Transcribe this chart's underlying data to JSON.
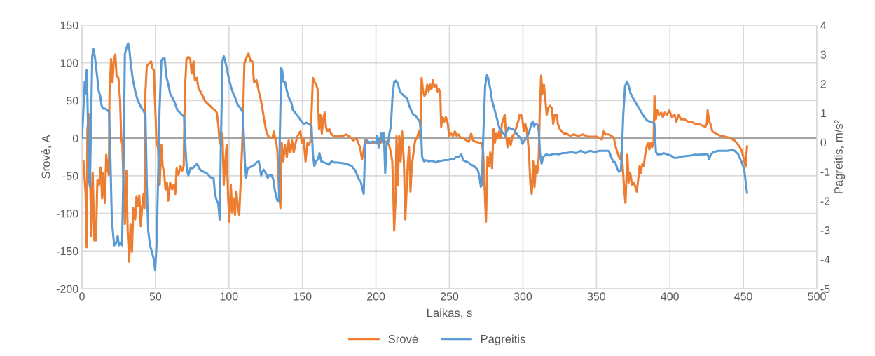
{
  "chart_data": {
    "type": "line",
    "xlabel": "Laikas, s",
    "ylabel": "Srovė, A",
    "y2label": "Pagreitis, m/s²",
    "xlim": [
      0,
      500
    ],
    "xticks": [
      0,
      50,
      100,
      150,
      200,
      250,
      300,
      350,
      400,
      450,
      500
    ],
    "ylim": [
      -200,
      150
    ],
    "yticks": [
      -200,
      -150,
      -100,
      -50,
      0,
      50,
      100,
      150
    ],
    "y2lim": [
      -5,
      4
    ],
    "y2ticks": [
      -5,
      -4,
      -3,
      -2,
      -1,
      0,
      1,
      2,
      3,
      4
    ],
    "grid": true,
    "legend": "bottom",
    "marker": "none",
    "line_style": "solid",
    "series": [
      {
        "name": "Srovė",
        "color": "#ed7d31",
        "axis": "y",
        "x": [
          1,
          2.5,
          3.2,
          3.7,
          4.8,
          6.3,
          7.3,
          8.4,
          9.5,
          10.5,
          11.6,
          12.7,
          13.7,
          14.4,
          15.6,
          16.5,
          17.6,
          18.3,
          18.7,
          19.8,
          20.8,
          21.6,
          22.7,
          23.5,
          24.8,
          25.9,
          26.7,
          27.5,
          28.3,
          29.2,
          30.2,
          31.1,
          32.1,
          33,
          34,
          34.9,
          36.2,
          37.1,
          38.1,
          39,
          40,
          41,
          41.9,
          42.5,
          43.2,
          44.1,
          45.7,
          47,
          47.9,
          48.9,
          49.8,
          50.8,
          51.7,
          52.9,
          54,
          54.9,
          55.9,
          56.8,
          57.8,
          58.7,
          60,
          61.3,
          62.4,
          63.5,
          64.4,
          65.7,
          67,
          68.3,
          69.2,
          70,
          71.1,
          72.4,
          73.7,
          74.6,
          75.9,
          76.8,
          78.1,
          79.4,
          80.6,
          82.2,
          83.8,
          85.4,
          87,
          88.6,
          90.5,
          91.7,
          92.7,
          93.7,
          94.6,
          95.6,
          96.5,
          97.5,
          98.4,
          99.4,
          100.3,
          101.3,
          102.2,
          103.2,
          104.1,
          105.1,
          106,
          107,
          107.9,
          109.2,
          110.5,
          111.6,
          113.2,
          114.8,
          115.9,
          117.1,
          118.7,
          120,
          121.6,
          122.7,
          123.9,
          125.4,
          126.7,
          128.3,
          129.5,
          130.6,
          131.4,
          132.2,
          133,
          133.9,
          135,
          135.9,
          137,
          138.1,
          139.4,
          140.6,
          141.9,
          142.9,
          144.1,
          145.4,
          146.7,
          147.6,
          148.6,
          149.5,
          150.8,
          152.1,
          153.4,
          154.4,
          155.6,
          156.2,
          157.1,
          158.4,
          159.4,
          160.3,
          161.3,
          162.2,
          163.2,
          164.1,
          165.1,
          166,
          167,
          168.3,
          169.5,
          171.1,
          172.7,
          175.1,
          177.5,
          179.8,
          182.2,
          184.6,
          186.7,
          187.9,
          189.2,
          190.5,
          191.4,
          192.7,
          194.3,
          196.5,
          198.9,
          201.3,
          203.2,
          204.4,
          205.7,
          207.6,
          208.9,
          210.2,
          211.1,
          211.7,
          212.4,
          213.3,
          214,
          214.9,
          215.9,
          216.8,
          217.8,
          219,
          220,
          221.6,
          222.5,
          223.5,
          224.4,
          225.4,
          226.7,
          227.9,
          229.2,
          230.2,
          231.1,
          232.1,
          233,
          234,
          234.9,
          235.9,
          236.8,
          237.8,
          238.7,
          239.7,
          241,
          241.9,
          242.9,
          243.8,
          244.4,
          245.4,
          246.5,
          247.6,
          248.9,
          249.8,
          251.1,
          252.4,
          253.7,
          254.9,
          256.2,
          257.8,
          259.4,
          261.6,
          263.2,
          264.8,
          266,
          267.9,
          270.3,
          272.1,
          273,
          274,
          274.9,
          275.9,
          276.8,
          277.8,
          279,
          280,
          281,
          281.9,
          282.9,
          283.8,
          284.8,
          285.7,
          286.7,
          287.6,
          288.6,
          289.5,
          290.5,
          291.7,
          293,
          294.3,
          295.6,
          296.8,
          297.8,
          298.7,
          299.7,
          300.6,
          301.6,
          302.5,
          303.2,
          304.1,
          305.1,
          306,
          307,
          307.9,
          308.9,
          309.8,
          310.8,
          311.4,
          312.4,
          313.3,
          314.3,
          315.2,
          316.2,
          317.1,
          318.4,
          319.7,
          320.6,
          321.6,
          322.9,
          323.8,
          325.1,
          326.3,
          327.9,
          329.8,
          332.2,
          334.6,
          337.8,
          340.9,
          344.1,
          347.3,
          350.4,
          353.7,
          354.9,
          356.2,
          358.4,
          360.3,
          361.9,
          363.2,
          364.8,
          366,
          367,
          367.9,
          368.9,
          369.8,
          371.1,
          372,
          373,
          374.3,
          375.6,
          376.5,
          377.5,
          378.4,
          379.4,
          380.3,
          381.3,
          382.2,
          383.2,
          384.1,
          385.1,
          386,
          387,
          387.9,
          388.9,
          389.5,
          390.5,
          391.4,
          392.7,
          394,
          395.2,
          396.5,
          398.1,
          399.7,
          401.3,
          403.2,
          404.4,
          406,
          407.6,
          410,
          412.4,
          414.8,
          417.1,
          419.5,
          421.9,
          424.1,
          425.1,
          425.7,
          426.7,
          427.6,
          428.9,
          431.4,
          434.6,
          437.8,
          441,
          444,
          446.5,
          448.6,
          450,
          451.5,
          452.5
        ],
        "values": [
          -31,
          -74,
          -145,
          12,
          32,
          -130,
          -46,
          -136,
          -136,
          -56,
          -62,
          -39,
          -80,
          -46,
          -86,
          -22,
          -43,
          -49,
          56,
          105,
          74,
          102,
          111,
          83,
          80,
          52,
          0,
          -9,
          -62,
          -114,
          -43,
          -123,
          -164,
          -114,
          -151,
          -93,
          -108,
          -77,
          -90,
          -76,
          -117,
          -90,
          -74,
          -93,
          62,
          96,
          99,
          102,
          93,
          90,
          43,
          -9,
          -12,
          -62,
          -9,
          -37,
          -46,
          -68,
          -59,
          -83,
          -59,
          -68,
          -62,
          -74,
          -40,
          -49,
          -37,
          -43,
          -37,
          62,
          105,
          108,
          105,
          86,
          102,
          77,
          80,
          65,
          62,
          56,
          49,
          46,
          43,
          40,
          37,
          34,
          19,
          -6,
          -9,
          6,
          -62,
          -31,
          -9,
          -77,
          -111,
          -62,
          -99,
          -80,
          -102,
          -71,
          -90,
          -102,
          -62,
          0,
          99,
          105,
          113,
          102,
          102,
          74,
          77,
          65,
          52,
          40,
          25,
          9,
          3,
          0,
          0,
          9,
          0,
          -6,
          -19,
          -62,
          -93,
          -6,
          -31,
          -9,
          -25,
          -3,
          -19,
          -3,
          -19,
          -6,
          3,
          6,
          9,
          -6,
          0,
          -31,
          -6,
          -9,
          -3,
          34,
          80,
          74,
          71,
          65,
          12,
          31,
          6,
          25,
          34,
          15,
          9,
          12,
          6,
          3,
          2,
          3,
          3,
          5,
          2,
          -3,
          0,
          -6,
          -12,
          -28,
          -19,
          -3,
          -6,
          -6,
          -6,
          -6,
          -6,
          0,
          -3,
          -6,
          -9,
          -19,
          -31,
          -62,
          -123,
          -83,
          3,
          -62,
          3,
          -31,
          9,
          -31,
          -108,
          -37,
          -12,
          -71,
          -37,
          -22,
          -3,
          0,
          9,
          0,
          80,
          62,
          56,
          59,
          71,
          62,
          71,
          65,
          77,
          68,
          71,
          62,
          65,
          59,
          15,
          28,
          22,
          28,
          19,
          3,
          6,
          3,
          9,
          3,
          5,
          0,
          0,
          -3,
          -5,
          6,
          -3,
          -5,
          -6,
          -6,
          -19,
          -68,
          -111,
          -25,
          -37,
          -19,
          -40,
          12,
          -6,
          6,
          0,
          9,
          0,
          19,
          25,
          31,
          3,
          -12,
          0,
          -9,
          3,
          6,
          15,
          22,
          31,
          31,
          25,
          9,
          19,
          12,
          0,
          -19,
          -62,
          -74,
          -31,
          -65,
          -37,
          -46,
          -25,
          31,
          83,
          59,
          71,
          52,
          31,
          40,
          43,
          40,
          19,
          31,
          31,
          19,
          12,
          9,
          6,
          6,
          3,
          5,
          3,
          5,
          2,
          2,
          2,
          -2,
          9,
          5,
          5,
          3,
          0,
          -12,
          -22,
          -28,
          -19,
          -37,
          -68,
          -86,
          -22,
          -59,
          -46,
          -62,
          -59,
          -65,
          -71,
          -56,
          -37,
          -46,
          -34,
          -37,
          -22,
          -12,
          -6,
          -15,
          -6,
          -12,
          -6,
          56,
          25,
          37,
          31,
          34,
          28,
          34,
          31,
          37,
          28,
          31,
          22,
          31,
          25,
          25,
          22,
          22,
          19,
          19,
          17,
          15,
          19,
          37,
          22,
          19,
          9,
          6,
          3,
          2,
          0,
          -3,
          -9,
          -15,
          -25,
          -38,
          -11
        ]
      },
      {
        "name": "Pagreitis",
        "color": "#5b9bd5",
        "axis": "y2",
        "x": [
          0,
          1,
          1.9,
          2.5,
          3.2,
          3.8,
          4.8,
          5.4,
          6.3,
          7,
          7.9,
          8.9,
          10.2,
          11.4,
          12.4,
          13.3,
          14.3,
          15.9,
          17.1,
          18.4,
          19.4,
          20.3,
          21.9,
          23.2,
          24.3,
          25.1,
          26.3,
          27.3,
          28.3,
          29.2,
          30.5,
          31.4,
          32.4,
          33.3,
          34.6,
          36.2,
          37.5,
          38.7,
          40.3,
          41.9,
          43.2,
          44.1,
          45.1,
          46.3,
          47.6,
          48.9,
          49.8,
          50.8,
          51.7,
          52.7,
          54,
          55.2,
          56.2,
          57.5,
          58.7,
          60,
          61.6,
          63.2,
          64.8,
          66.3,
          67.9,
          69.5,
          70.5,
          71.4,
          72.4,
          73.7,
          75.2,
          76.8,
          78.4,
          79.7,
          81.3,
          82.9,
          84.8,
          86.3,
          87.9,
          89.5,
          90.5,
          91.7,
          92.7,
          93.7,
          94.6,
          95.6,
          96.5,
          98.1,
          99.7,
          101.3,
          102.9,
          104.4,
          106,
          107.6,
          109.5,
          110.8,
          111.7,
          112.7,
          114.3,
          115.9,
          117.4,
          118.7,
          120.3,
          121.9,
          123.5,
          125,
          126.3,
          127.6,
          129.2,
          130.2,
          131.1,
          132.1,
          133,
          134,
          134.6,
          135.6,
          136.2,
          137.1,
          138.1,
          139.4,
          140.9,
          142.5,
          143.5,
          145.4,
          147.3,
          148.9,
          150.8,
          152.7,
          154.3,
          156.2,
          157.1,
          158.1,
          159.4,
          160.6,
          161.6,
          162.8,
          164.8,
          166.7,
          167.9,
          169.8,
          171.7,
          174.3,
          176.8,
          179.1,
          181.6,
          183.5,
          184.8,
          186,
          187.3,
          188.6,
          189.8,
          190.8,
          191.7,
          192.7,
          193.7,
          195.6,
          198.1,
          200,
          200.9,
          201.9,
          202.9,
          203.8,
          204.8,
          205.4,
          206.3,
          207.3,
          208.3,
          209.2,
          210.2,
          211.2,
          212.4,
          213.7,
          215,
          216.2,
          218.1,
          220,
          221.3,
          222.5,
          223.8,
          225.4,
          227,
          228.6,
          229.8,
          230.8,
          231.4,
          232.7,
          234.3,
          235.9,
          237.5,
          239.4,
          240.6,
          242.5,
          244.4,
          246.7,
          248.9,
          251.1,
          253,
          254.9,
          256.5,
          258.1,
          259.4,
          260.9,
          262.9,
          264.8,
          266.7,
          268.3,
          269.5,
          270.5,
          271.4,
          272.1,
          273,
          274.3,
          275.6,
          276.5,
          277.8,
          279,
          280.3,
          281.6,
          282.9,
          284.1,
          285.4,
          286.7,
          287.9,
          289.2,
          290.2,
          291.7,
          293.3,
          294.9,
          296.8,
          298.4,
          299.7,
          301.3,
          302.9,
          304.5,
          305.7,
          306.7,
          307.6,
          308.9,
          310.2,
          310.8,
          311.7,
          312.7,
          314,
          315.9,
          317.8,
          319.7,
          321.9,
          324.4,
          326.7,
          329.2,
          333,
          336.2,
          339.4,
          342.5,
          345.7,
          348.9,
          352.1,
          355.2,
          358.4,
          360,
          361.3,
          362.9,
          364.1,
          365.4,
          366.7,
          367.3,
          368.3,
          369.5,
          370.8,
          372.1,
          373.3,
          374.9,
          376.8,
          378.7,
          380.6,
          382.5,
          384.4,
          386.3,
          388.6,
          389.5,
          390.5,
          391.7,
          393.7,
          395.9,
          398.1,
          400.6,
          402.9,
          405.1,
          407.6,
          410.8,
          414,
          417.1,
          420.3,
          423.5,
          425.7,
          426.7,
          427.9,
          429.8,
          433,
          436.2,
          439.4,
          442.5,
          444.1,
          446.5,
          448.6,
          450.5,
          452.5
        ],
        "values": [
          0.15,
          1.11,
          2.07,
          1.67,
          2.47,
          1.35,
          -1.28,
          -1.52,
          0.95,
          2.94,
          3.18,
          2.87,
          2.31,
          1.75,
          1.59,
          1.27,
          1.15,
          1.15,
          1.11,
          1.03,
          -0.65,
          -2.64,
          -3.52,
          -3.44,
          -3.2,
          -3.52,
          -3.44,
          -3.52,
          -0.65,
          3.02,
          3.26,
          3.38,
          3.1,
          2.63,
          2.15,
          1.75,
          1.51,
          1.35,
          1.19,
          1.07,
          0.95,
          -1.44,
          -3.04,
          -3.52,
          -3.76,
          -4.0,
          -4.36,
          -3.44,
          -1.44,
          0.95,
          2.79,
          2.87,
          2.87,
          2.23,
          1.99,
          1.67,
          1.51,
          1.35,
          1.11,
          1.03,
          0.95,
          0.87,
          -0.25,
          -0.97,
          -1.13,
          -0.89,
          -0.89,
          -0.81,
          -0.73,
          -0.89,
          -0.97,
          -1.01,
          -1.05,
          -1.13,
          -1.21,
          -1.21,
          -1.76,
          -2.0,
          -2.08,
          -2.64,
          0.15,
          2.79,
          2.94,
          2.63,
          2.23,
          1.91,
          1.67,
          1.51,
          1.27,
          1.19,
          1.03,
          -0.65,
          -1.21,
          -0.89,
          -0.85,
          -0.81,
          -0.77,
          -0.69,
          -0.65,
          -1.13,
          -0.93,
          -1.05,
          -1.21,
          -1.13,
          -1.13,
          -1.28,
          -1.6,
          -1.84,
          -2.0,
          -2.0,
          0.15,
          2.55,
          2.47,
          2.07,
          2.07,
          1.75,
          1.51,
          1.35,
          1.11,
          0.99,
          0.87,
          0.75,
          0.63,
          0.67,
          0.63,
          0.55,
          -0.41,
          -0.81,
          -0.65,
          -0.57,
          -0.37,
          -0.65,
          -0.69,
          -0.73,
          -0.77,
          -0.65,
          -0.69,
          -0.69,
          -0.71,
          -0.73,
          -0.77,
          -0.81,
          -0.89,
          -0.97,
          -1.13,
          -1.28,
          -1.36,
          -1.6,
          -1.76,
          -0.09,
          0.07,
          -0.01,
          0.03,
          -0.01,
          0.23,
          -0.17,
          0.15,
          0.31,
          -0.01,
          0.31,
          -1.05,
          -0.01,
          -0.01,
          0.31,
          0.55,
          1.51,
          2.07,
          2.11,
          1.99,
          1.75,
          1.63,
          1.55,
          1.51,
          1.27,
          1.11,
          0.95,
          0.91,
          0.79,
          0.71,
          0.31,
          -0.49,
          -0.65,
          -0.61,
          -0.65,
          -0.63,
          -0.65,
          -0.69,
          -0.65,
          -0.63,
          -0.61,
          -0.61,
          -0.58,
          -0.57,
          -0.49,
          -0.49,
          -0.41,
          -0.61,
          -0.65,
          -0.69,
          -0.77,
          -0.81,
          -0.89,
          -0.97,
          -1.21,
          -1.52,
          -1.44,
          0.15,
          1.91,
          2.31,
          2.15,
          1.83,
          1.43,
          1.19,
          0.95,
          0.71,
          0.47,
          0.39,
          0.31,
          0.23,
          0.39,
          0.51,
          0.47,
          0.47,
          0.35,
          0.23,
          0.15,
          -0.05,
          0.07,
          0.19,
          0.39,
          0.63,
          0.71,
          0.55,
          0.63,
          0.59,
          0.39,
          -0.41,
          -0.73,
          -0.49,
          -0.41,
          -0.45,
          -0.41,
          -0.39,
          -0.41,
          -0.37,
          -0.37,
          -0.34,
          -0.37,
          -0.29,
          -0.37,
          -0.29,
          -0.33,
          -0.29,
          -0.29,
          -0.29,
          -0.49,
          -0.65,
          -0.69,
          -0.89,
          -1.01,
          -0.97,
          -0.33,
          0.95,
          1.91,
          2.08,
          1.91,
          1.67,
          1.51,
          1.35,
          1.19,
          1.03,
          0.87,
          0.75,
          0.71,
          0.67,
          0.63,
          -0.33,
          -0.41,
          -0.41,
          -0.37,
          -0.41,
          -0.45,
          -0.53,
          -0.53,
          -0.49,
          -0.47,
          -0.45,
          -0.42,
          -0.42,
          -0.41,
          -0.41,
          -0.57,
          -0.41,
          -0.33,
          -0.29,
          -0.29,
          -0.29,
          -0.25,
          -0.29,
          -0.41,
          -0.65,
          -0.9,
          -1.72
        ]
      }
    ]
  }
}
